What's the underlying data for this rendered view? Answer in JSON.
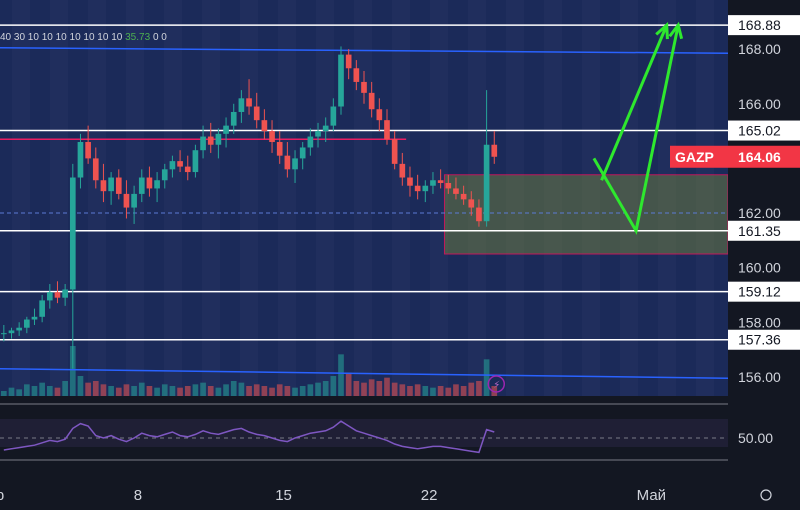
{
  "indicator_row": {
    "prefix": "40 30 10 10 10 10 10 10 10",
    "value": "35.73",
    "zeros": "0 0"
  },
  "ticker": {
    "symbol": "GAZP",
    "price": "164.06"
  },
  "symbol_colors": {
    "accent_red": "#f23645",
    "up": "#26a69a",
    "down": "#ef5350",
    "arrow": "#2ee82e",
    "bg": "#131722"
  },
  "lightning_icon": "lightning-icon",
  "settings_icon": "gear-icon",
  "chart_data": {
    "type": "candlestick",
    "y_ticks": [
      "168.00",
      "166.00",
      "162.00",
      "160.00",
      "158.00",
      "156.00"
    ],
    "y_range": [
      155.3,
      169.8
    ],
    "level_labels": [
      "168.88",
      "165.02",
      "161.35",
      "159.12",
      "157.36"
    ],
    "levels": [
      168.88,
      165.02,
      161.35,
      159.12,
      157.36
    ],
    "channel": {
      "upper": [
        [
          0,
          168.05
        ],
        [
          95,
          167.85
        ]
      ],
      "lower": [
        [
          0,
          156.3
        ],
        [
          95,
          155.95
        ]
      ]
    },
    "resistance_line": 164.7,
    "zone": {
      "x_from": 58,
      "x_to": 95,
      "y_from": 160.5,
      "y_to": 163.4
    },
    "x_ticks": [
      "р",
      "8",
      "15",
      "22",
      "Май"
    ],
    "x_tick_positions": [
      0,
      18,
      37,
      56,
      85
    ],
    "arrows": [
      [
        [
          77.5,
          164.0
        ],
        [
          83,
          161.35
        ],
        [
          88.5,
          168.88
        ]
      ],
      [
        [
          78.5,
          163.2
        ],
        [
          87,
          168.88
        ]
      ]
    ],
    "candles": [
      [
        157.6,
        157.9,
        157.3,
        157.6
      ],
      [
        157.6,
        157.8,
        157.4,
        157.7
      ],
      [
        157.7,
        158.0,
        157.5,
        157.8
      ],
      [
        157.8,
        158.2,
        157.6,
        158.1
      ],
      [
        158.1,
        158.5,
        157.9,
        158.2
      ],
      [
        158.2,
        159.0,
        158.0,
        158.8
      ],
      [
        158.8,
        159.4,
        158.5,
        159.1
      ],
      [
        159.1,
        159.5,
        158.7,
        158.9
      ],
      [
        158.9,
        159.4,
        158.6,
        159.2
      ],
      [
        159.2,
        163.8,
        156.3,
        163.3
      ],
      [
        163.3,
        164.9,
        162.9,
        164.6
      ],
      [
        164.6,
        165.2,
        163.8,
        164.0
      ],
      [
        164.0,
        164.4,
        162.9,
        163.2
      ],
      [
        163.2,
        163.8,
        162.4,
        162.8
      ],
      [
        162.8,
        163.5,
        162.3,
        163.3
      ],
      [
        163.3,
        163.6,
        162.5,
        162.7
      ],
      [
        162.7,
        163.2,
        161.8,
        162.2
      ],
      [
        162.2,
        163.0,
        161.6,
        162.7
      ],
      [
        162.7,
        163.6,
        162.4,
        163.3
      ],
      [
        163.3,
        163.7,
        162.6,
        162.9
      ],
      [
        162.9,
        163.5,
        162.4,
        163.2
      ],
      [
        163.2,
        163.8,
        162.9,
        163.6
      ],
      [
        163.6,
        164.1,
        163.3,
        163.9
      ],
      [
        163.9,
        164.3,
        163.5,
        163.7
      ],
      [
        163.7,
        164.1,
        163.2,
        163.5
      ],
      [
        163.5,
        164.5,
        163.3,
        164.3
      ],
      [
        164.3,
        165.2,
        164.0,
        164.8
      ],
      [
        164.8,
        165.3,
        164.2,
        164.5
      ],
      [
        164.5,
        165.1,
        164.0,
        164.9
      ],
      [
        164.9,
        165.5,
        164.4,
        165.2
      ],
      [
        165.2,
        166.0,
        164.9,
        165.7
      ],
      [
        165.7,
        166.5,
        165.3,
        166.2
      ],
      [
        166.2,
        166.9,
        165.6,
        165.9
      ],
      [
        165.9,
        166.4,
        165.1,
        165.4
      ],
      [
        165.4,
        165.8,
        164.7,
        165.0
      ],
      [
        165.0,
        165.4,
        164.2,
        164.6
      ],
      [
        164.6,
        165.0,
        163.8,
        164.1
      ],
      [
        164.1,
        164.6,
        163.3,
        163.6
      ],
      [
        163.6,
        164.3,
        163.1,
        164.0
      ],
      [
        164.0,
        164.6,
        163.6,
        164.4
      ],
      [
        164.4,
        165.1,
        164.1,
        164.8
      ],
      [
        164.8,
        165.3,
        164.4,
        165.0
      ],
      [
        165.0,
        165.5,
        164.6,
        165.2
      ],
      [
        165.2,
        166.2,
        165.0,
        165.9
      ],
      [
        165.9,
        168.1,
        165.6,
        167.8
      ],
      [
        167.8,
        168.0,
        166.9,
        167.3
      ],
      [
        167.3,
        167.6,
        166.5,
        166.8
      ],
      [
        166.8,
        167.2,
        166.0,
        166.4
      ],
      [
        166.4,
        166.8,
        165.5,
        165.8
      ],
      [
        165.8,
        166.2,
        165.0,
        165.4
      ],
      [
        165.4,
        165.8,
        164.5,
        164.7
      ],
      [
        164.7,
        165.0,
        163.6,
        163.8
      ],
      [
        163.8,
        164.2,
        163.0,
        163.3
      ],
      [
        163.3,
        163.7,
        162.6,
        163.0
      ],
      [
        163.0,
        163.4,
        162.5,
        162.8
      ],
      [
        162.8,
        163.2,
        162.4,
        163.0
      ],
      [
        163.0,
        163.5,
        162.7,
        163.2
      ],
      [
        163.2,
        163.6,
        162.9,
        163.1
      ],
      [
        163.1,
        163.4,
        162.7,
        162.9
      ],
      [
        162.9,
        163.3,
        162.5,
        162.7
      ],
      [
        162.7,
        163.0,
        162.3,
        162.5
      ],
      [
        162.5,
        162.8,
        161.9,
        162.2
      ],
      [
        162.2,
        162.5,
        161.5,
        161.7
      ],
      [
        161.7,
        166.5,
        161.5,
        164.5
      ],
      [
        164.5,
        165.0,
        163.8,
        164.06
      ]
    ],
    "volumes": [
      3,
      5,
      4,
      7,
      6,
      8,
      6,
      5,
      9,
      30,
      12,
      8,
      9,
      7,
      6,
      5,
      7,
      6,
      8,
      6,
      5,
      7,
      6,
      5,
      6,
      7,
      8,
      6,
      5,
      7,
      9,
      8,
      6,
      7,
      6,
      5,
      7,
      6,
      5,
      6,
      7,
      8,
      9,
      12,
      25,
      14,
      9,
      8,
      10,
      9,
      11,
      8,
      7,
      6,
      7,
      6,
      5,
      6,
      5,
      7,
      6,
      8,
      9,
      22,
      6
    ],
    "rsi": [
      40,
      41,
      42,
      43,
      44,
      46,
      48,
      47,
      49,
      58,
      62,
      60,
      52,
      50,
      52,
      49,
      47,
      50,
      54,
      52,
      51,
      53,
      55,
      52,
      51,
      53,
      56,
      54,
      53,
      55,
      57,
      58,
      55,
      53,
      52,
      50,
      48,
      47,
      50,
      52,
      54,
      55,
      56,
      59,
      64,
      60,
      56,
      54,
      52,
      50,
      48,
      45,
      43,
      42,
      41,
      42,
      43,
      43,
      42,
      41,
      40,
      39,
      38,
      57,
      55
    ],
    "rsi_label": "50.00"
  }
}
